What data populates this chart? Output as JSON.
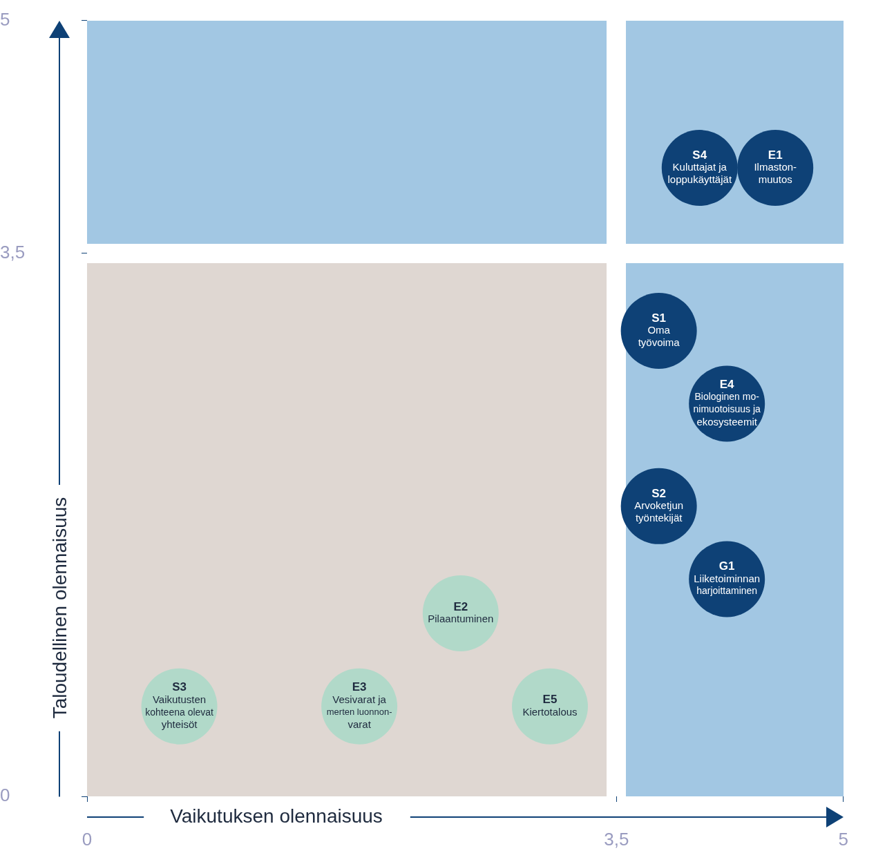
{
  "chart_data": {
    "type": "scatter",
    "marker": "circle",
    "xlabel": "Vaikutuksen olennaisuus",
    "ylabel": "Taloudellinen olennaisuus",
    "xlim": [
      0,
      5
    ],
    "ylim": [
      0,
      5
    ],
    "xticks": [
      0,
      {
        "value": 3.5,
        "label": "3,5"
      },
      5
    ],
    "yticks": [
      0,
      {
        "value": 3.5,
        "label": "3,5"
      },
      5
    ],
    "grid": false,
    "legend": false,
    "series": [
      {
        "color": "#0e4176",
        "x": [
          4.05,
          4.55,
          3.78,
          4.23,
          3.78,
          4.23
        ],
        "values": [
          4.05,
          4.05,
          3.0,
          2.53,
          1.87,
          1.4
        ]
      },
      {
        "color": "#b1d9c9",
        "x": [
          2.47,
          0.61,
          1.8,
          3.06
        ],
        "values": [
          1.18,
          0.58,
          0.58,
          0.58
        ]
      }
    ],
    "annotations": [
      {
        "text": "S4\nKuluttajat ja\nloppukäyttäjät",
        "x": 4.05,
        "y": 4.05
      },
      {
        "text": "E1\nIlmaston-\nmuutos",
        "x": 4.55,
        "y": 4.05
      },
      {
        "text": "S1\nOma\ntyövoima",
        "x": 3.78,
        "y": 3.0
      },
      {
        "text": "E4\nBiologinen mo-\nnimuotoisuus ja\nekosysteemit",
        "x": 4.23,
        "y": 2.53
      },
      {
        "text": "S2\nArvoketjun\ntyöntekijät",
        "x": 3.78,
        "y": 1.87
      },
      {
        "text": "G1\nLiiketoiminnan\nharjoittaminen",
        "x": 4.23,
        "y": 1.4
      },
      {
        "text": "E2\nPilaantuminen",
        "x": 2.47,
        "y": 1.18
      },
      {
        "text": "S3\nVaikutusten\nkohteena olevat\nyhteisöt",
        "x": 0.61,
        "y": 0.58
      },
      {
        "text": "E3\nVesivarat ja\nmerten luonnon-\nvarat",
        "x": 1.8,
        "y": 0.58
      },
      {
        "text": "E5\nKiertotalous",
        "x": 3.06,
        "y": 0.58
      }
    ]
  }
}
